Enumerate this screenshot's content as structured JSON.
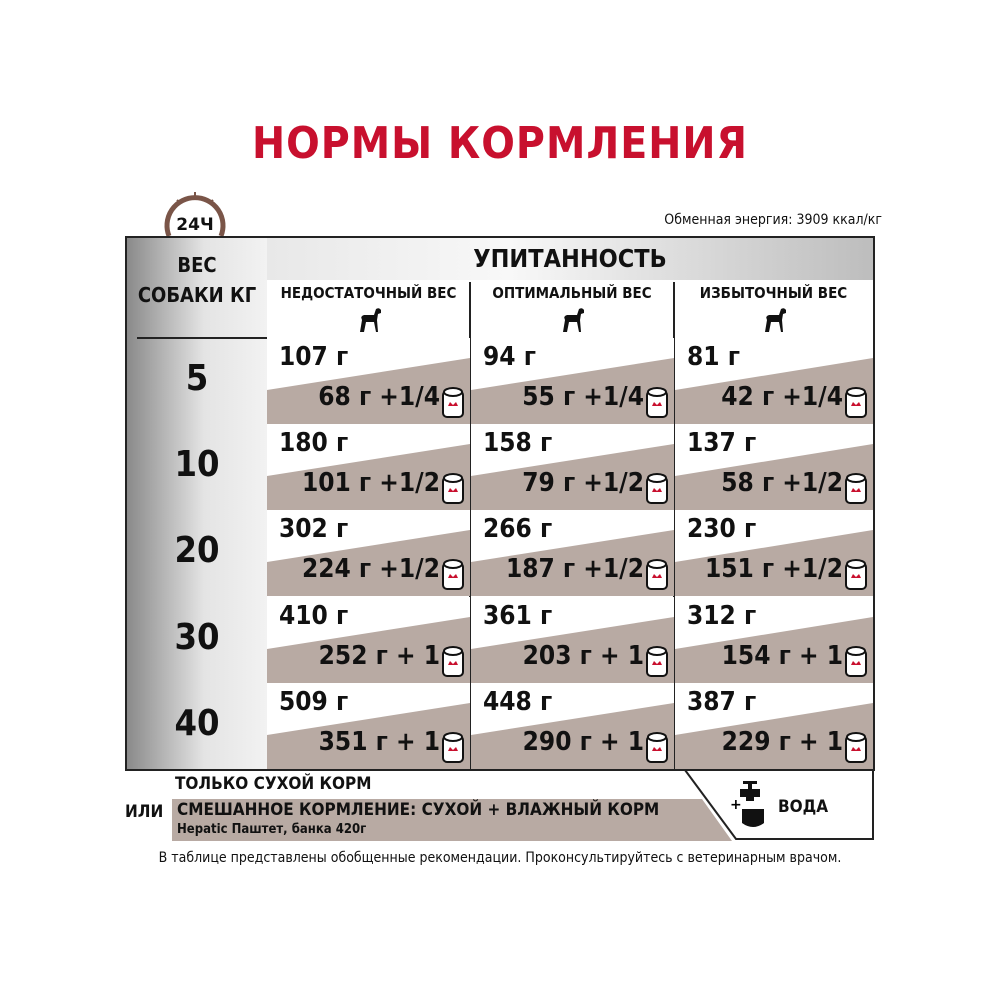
{
  "title": "НОРМЫ КОРМЛЕНИЯ",
  "clock_label": "24Ч",
  "energy": "Обменная энергия: 3909 ккал/кг",
  "weight_header": "ВЕС СОБАКИ КГ",
  "nutrition_header": "УПИТАННОСТЬ",
  "columns": [
    "НЕДОСТАТОЧНЫЙ ВЕС",
    "ОПТИМАЛЬНЫЙ ВЕС",
    "ИЗБЫТОЧНЫЙ ВЕС"
  ],
  "rows": [
    {
      "weight": "5",
      "cells": [
        {
          "dry": "107 г",
          "wet": "68 г +1/4"
        },
        {
          "dry": "94 г",
          "wet": "55 г +1/4"
        },
        {
          "dry": "81 г",
          "wet": "42 г +1/4"
        }
      ]
    },
    {
      "weight": "10",
      "cells": [
        {
          "dry": "180 г",
          "wet": "101 г +1/2"
        },
        {
          "dry": "158 г",
          "wet": "79 г +1/2"
        },
        {
          "dry": "137 г",
          "wet": "58 г +1/2"
        }
      ]
    },
    {
      "weight": "20",
      "cells": [
        {
          "dry": "302 г",
          "wet": "224 г +1/2"
        },
        {
          "dry": "266 г",
          "wet": "187 г +1/2"
        },
        {
          "dry": "230 г",
          "wet": "151 г +1/2"
        }
      ]
    },
    {
      "weight": "30",
      "cells": [
        {
          "dry": "410 г",
          "wet": "252 г + 1"
        },
        {
          "dry": "361 г",
          "wet": "203 г + 1"
        },
        {
          "dry": "312 г",
          "wet": "154 г + 1"
        }
      ]
    },
    {
      "weight": "40",
      "cells": [
        {
          "dry": "509 г",
          "wet": "351 г + 1"
        },
        {
          "dry": "448 г",
          "wet": "290 г + 1"
        },
        {
          "dry": "387 г",
          "wet": "229 г + 1"
        }
      ]
    }
  ],
  "legend": {
    "dry_only": "ТОЛЬКО СУХОЙ КОРМ",
    "or": "ИЛИ",
    "mixed": "СМЕШАННОЕ КОРМЛЕНИЕ: СУХОЙ + ВЛАЖНЫЙ КОРМ",
    "mixed_sub": "Hepatic Паштет, банка 420г",
    "water": "ВОДА"
  },
  "footnote": "В таблице представлены обобщенные рекомендации. Проконсультируйтесь с ветеринарным врачом.",
  "colors": {
    "title": "#c8102e",
    "wet_fill": "#b8aaa3",
    "clock": "#7a5548"
  }
}
